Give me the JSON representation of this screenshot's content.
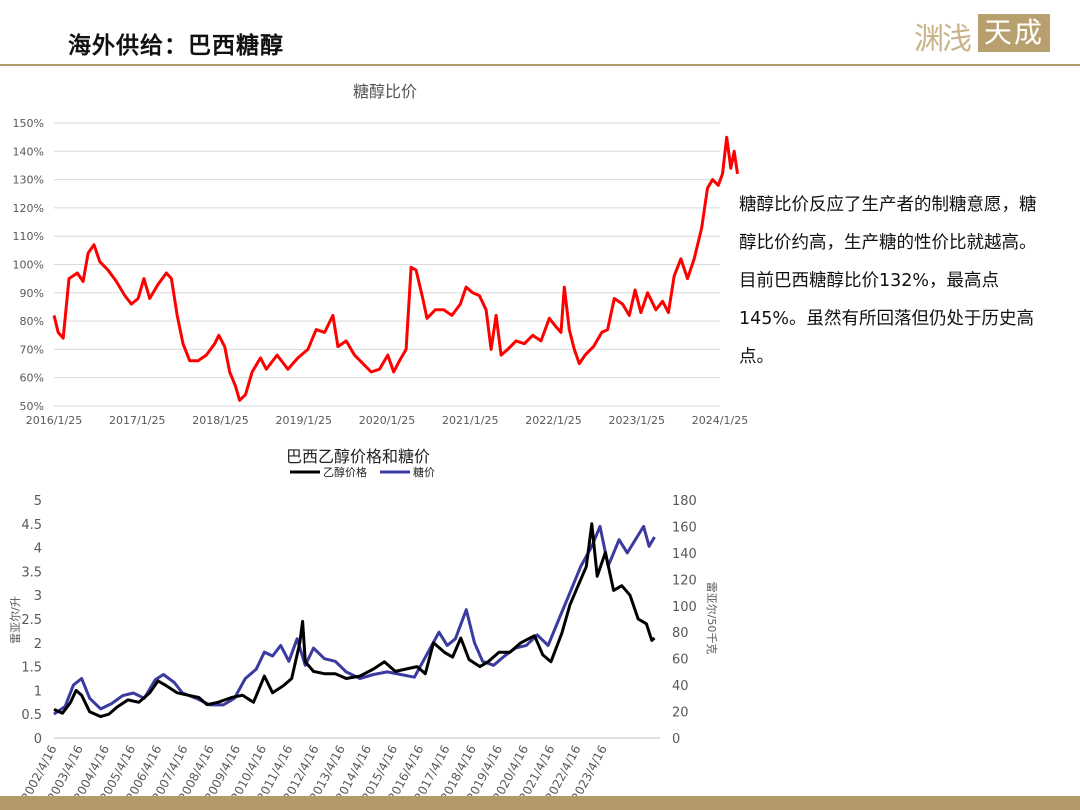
{
  "header": {
    "title": "海外供给：巴西糖醇",
    "logo_script": "渊浅",
    "logo_box": "天成"
  },
  "annotation": "糖醇比价反应了生产者的制糖意愿，糖醇比价约高，生产糖的性价比就越高。目前巴西糖醇比价132%，最高点145%。虽然有所回落但仍处于历史高点。",
  "colors": {
    "ratio_line": "#ff0000",
    "ethanol": "#000000",
    "sugar": "#3a3aa0",
    "accent": "#b49a6a"
  },
  "chart_data": [
    {
      "type": "line",
      "title": "糖醇比价",
      "y_format": "percent",
      "ylim": [
        50,
        150
      ],
      "yticks": [
        50,
        60,
        70,
        80,
        90,
        100,
        110,
        120,
        130,
        140,
        150
      ],
      "xlim": [
        2016.07,
        2024.07
      ],
      "xtick_labels": [
        "2016/1/25",
        "2017/1/25",
        "2018/1/25",
        "2019/1/25",
        "2020/1/25",
        "2021/1/25",
        "2022/1/25",
        "2023/1/25",
        "2024/1/25"
      ],
      "grid": true,
      "series": [
        {
          "color": "#ff0000",
          "points": [
            [
              2016.07,
              82
            ],
            [
              2016.12,
              76
            ],
            [
              2016.18,
              74
            ],
            [
              2016.25,
              95
            ],
            [
              2016.35,
              97
            ],
            [
              2016.42,
              94
            ],
            [
              2016.48,
              104
            ],
            [
              2016.55,
              107
            ],
            [
              2016.62,
              101
            ],
            [
              2016.72,
              98
            ],
            [
              2016.82,
              94
            ],
            [
              2016.92,
              89
            ],
            [
              2017.0,
              86
            ],
            [
              2017.08,
              88
            ],
            [
              2017.15,
              95
            ],
            [
              2017.22,
              88
            ],
            [
              2017.32,
              93
            ],
            [
              2017.42,
              97
            ],
            [
              2017.48,
              95
            ],
            [
              2017.55,
              82
            ],
            [
              2017.62,
              72
            ],
            [
              2017.7,
              66
            ],
            [
              2017.8,
              66
            ],
            [
              2017.9,
              68
            ],
            [
              2018.0,
              72
            ],
            [
              2018.05,
              75
            ],
            [
              2018.12,
              71
            ],
            [
              2018.18,
              62
            ],
            [
              2018.25,
              57
            ],
            [
              2018.3,
              52
            ],
            [
              2018.37,
              54
            ],
            [
              2018.45,
              62
            ],
            [
              2018.55,
              67
            ],
            [
              2018.62,
              63
            ],
            [
              2018.75,
              68
            ],
            [
              2018.88,
              63
            ],
            [
              2019.0,
              67
            ],
            [
              2019.12,
              70
            ],
            [
              2019.22,
              77
            ],
            [
              2019.32,
              76
            ],
            [
              2019.42,
              82
            ],
            [
              2019.48,
              71
            ],
            [
              2019.58,
              73
            ],
            [
              2019.68,
              68
            ],
            [
              2019.78,
              65
            ],
            [
              2019.88,
              62
            ],
            [
              2019.98,
              63
            ],
            [
              2020.08,
              68
            ],
            [
              2020.15,
              62
            ],
            [
              2020.22,
              66
            ],
            [
              2020.3,
              70
            ],
            [
              2020.36,
              99
            ],
            [
              2020.42,
              98
            ],
            [
              2020.5,
              88
            ],
            [
              2020.55,
              81
            ],
            [
              2020.65,
              84
            ],
            [
              2020.75,
              84
            ],
            [
              2020.85,
              82
            ],
            [
              2020.95,
              86
            ],
            [
              2021.02,
              92
            ],
            [
              2021.1,
              90
            ],
            [
              2021.18,
              89
            ],
            [
              2021.26,
              84
            ],
            [
              2021.32,
              70
            ],
            [
              2021.38,
              82
            ],
            [
              2021.44,
              68
            ],
            [
              2021.52,
              70
            ],
            [
              2021.62,
              73
            ],
            [
              2021.72,
              72
            ],
            [
              2021.82,
              75
            ],
            [
              2021.92,
              73
            ],
            [
              2022.02,
              81
            ],
            [
              2022.1,
              78
            ],
            [
              2022.16,
              76
            ],
            [
              2022.2,
              92
            ],
            [
              2022.26,
              77
            ],
            [
              2022.32,
              70
            ],
            [
              2022.38,
              65
            ],
            [
              2022.45,
              68
            ],
            [
              2022.55,
              71
            ],
            [
              2022.65,
              76
            ],
            [
              2022.72,
              77
            ],
            [
              2022.8,
              88
            ],
            [
              2022.9,
              86
            ],
            [
              2022.98,
              82
            ],
            [
              2023.05,
              91
            ],
            [
              2023.12,
              83
            ],
            [
              2023.2,
              90
            ],
            [
              2023.3,
              84
            ],
            [
              2023.38,
              87
            ],
            [
              2023.45,
              83
            ],
            [
              2023.52,
              96
            ],
            [
              2023.6,
              102
            ],
            [
              2023.68,
              95
            ],
            [
              2023.76,
              102
            ],
            [
              2023.85,
              113
            ],
            [
              2023.92,
              127
            ],
            [
              2023.98,
              130
            ],
            [
              2024.05,
              128
            ],
            [
              2024.1,
              132
            ],
            [
              2024.15,
              145
            ],
            [
              2024.2,
              134
            ],
            [
              2024.24,
              140
            ],
            [
              2024.28,
              132
            ]
          ]
        }
      ]
    },
    {
      "type": "line",
      "title": "巴西乙醇价格和糖价",
      "legend_position": "top",
      "ylim": [
        0,
        5
      ],
      "yticks": [
        "0",
        "0.5",
        "1",
        "1.5",
        "2",
        "2.5",
        "3",
        "3.5",
        "4",
        "4.5",
        "5"
      ],
      "ylabel": "雷亚尔/升",
      "y2lim": [
        0,
        180
      ],
      "y2ticks": [
        "0",
        "20",
        "40",
        "60",
        "80",
        "100",
        "120",
        "140",
        "160",
        "180"
      ],
      "y2label": "雷亚尔/50千克",
      "xlim": [
        2002.29,
        2024.5
      ],
      "xtick_labels": [
        "2002/4/16",
        "2003/4/16",
        "2004/4/16",
        "2005/4/16",
        "2006/4/16",
        "2007/4/16",
        "2008/4/16",
        "2009/4/16",
        "2010/4/16",
        "2011/4/16",
        "2012/4/16",
        "2013/4/16",
        "2014/4/16",
        "2015/4/16",
        "2016/4/16",
        "2017/4/16",
        "2018/4/16",
        "2019/4/16",
        "2020/4/16",
        "2021/4/16",
        "2022/4/16",
        "2023/4/16"
      ],
      "grid": false,
      "series": [
        {
          "name": "乙醇价格",
          "axis": "left",
          "color": "#000000",
          "points": [
            [
              2002.29,
              0.6
            ],
            [
              2002.6,
              0.52
            ],
            [
              2002.9,
              0.75
            ],
            [
              2003.1,
              1.0
            ],
            [
              2003.3,
              0.9
            ],
            [
              2003.6,
              0.55
            ],
            [
              2004.0,
              0.45
            ],
            [
              2004.3,
              0.5
            ],
            [
              2004.6,
              0.65
            ],
            [
              2005.0,
              0.8
            ],
            [
              2005.4,
              0.75
            ],
            [
              2005.8,
              0.95
            ],
            [
              2006.1,
              1.2
            ],
            [
              2006.4,
              1.1
            ],
            [
              2006.8,
              0.95
            ],
            [
              2007.2,
              0.9
            ],
            [
              2007.6,
              0.85
            ],
            [
              2007.9,
              0.7
            ],
            [
              2008.3,
              0.75
            ],
            [
              2008.8,
              0.85
            ],
            [
              2009.2,
              0.9
            ],
            [
              2009.6,
              0.75
            ],
            [
              2010.0,
              1.3
            ],
            [
              2010.3,
              0.95
            ],
            [
              2010.7,
              1.1
            ],
            [
              2011.0,
              1.25
            ],
            [
              2011.3,
              2.0
            ],
            [
              2011.4,
              2.45
            ],
            [
              2011.5,
              1.6
            ],
            [
              2011.8,
              1.4
            ],
            [
              2012.2,
              1.35
            ],
            [
              2012.6,
              1.35
            ],
            [
              2013.0,
              1.25
            ],
            [
              2013.5,
              1.3
            ],
            [
              2014.0,
              1.45
            ],
            [
              2014.4,
              1.6
            ],
            [
              2014.8,
              1.4
            ],
            [
              2015.2,
              1.45
            ],
            [
              2015.6,
              1.5
            ],
            [
              2015.9,
              1.35
            ],
            [
              2016.2,
              2.0
            ],
            [
              2016.6,
              1.8
            ],
            [
              2016.9,
              1.7
            ],
            [
              2017.2,
              2.1
            ],
            [
              2017.5,
              1.65
            ],
            [
              2017.9,
              1.5
            ],
            [
              2018.2,
              1.6
            ],
            [
              2018.6,
              1.8
            ],
            [
              2019.0,
              1.8
            ],
            [
              2019.4,
              2.0
            ],
            [
              2019.9,
              2.15
            ],
            [
              2020.2,
              1.75
            ],
            [
              2020.5,
              1.6
            ],
            [
              2020.9,
              2.2
            ],
            [
              2021.2,
              2.8
            ],
            [
              2021.5,
              3.2
            ],
            [
              2021.8,
              3.6
            ],
            [
              2022.0,
              4.5
            ],
            [
              2022.2,
              3.4
            ],
            [
              2022.5,
              3.9
            ],
            [
              2022.8,
              3.1
            ],
            [
              2023.1,
              3.2
            ],
            [
              2023.4,
              3.0
            ],
            [
              2023.7,
              2.5
            ],
            [
              2024.0,
              2.4
            ],
            [
              2024.2,
              2.05
            ],
            [
              2024.3,
              2.1
            ]
          ]
        },
        {
          "name": "糖价",
          "axis": "right",
          "color": "#3a3aa0",
          "points": [
            [
              2002.29,
              18
            ],
            [
              2002.7,
              24
            ],
            [
              2003.0,
              40
            ],
            [
              2003.3,
              45
            ],
            [
              2003.6,
              30
            ],
            [
              2004.0,
              22
            ],
            [
              2004.4,
              26
            ],
            [
              2004.8,
              32
            ],
            [
              2005.2,
              34
            ],
            [
              2005.6,
              30
            ],
            [
              2006.0,
              44
            ],
            [
              2006.3,
              48
            ],
            [
              2006.7,
              42
            ],
            [
              2007.0,
              34
            ],
            [
              2007.5,
              30
            ],
            [
              2008.0,
              25
            ],
            [
              2008.5,
              25
            ],
            [
              2008.9,
              30
            ],
            [
              2009.3,
              45
            ],
            [
              2009.7,
              52
            ],
            [
              2010.0,
              65
            ],
            [
              2010.3,
              62
            ],
            [
              2010.6,
              70
            ],
            [
              2010.9,
              58
            ],
            [
              2011.2,
              75
            ],
            [
              2011.5,
              55
            ],
            [
              2011.8,
              68
            ],
            [
              2012.2,
              60
            ],
            [
              2012.6,
              58
            ],
            [
              2013.0,
              50
            ],
            [
              2013.5,
              45
            ],
            [
              2014.0,
              48
            ],
            [
              2014.5,
              50
            ],
            [
              2015.0,
              48
            ],
            [
              2015.5,
              46
            ],
            [
              2016.0,
              65
            ],
            [
              2016.4,
              80
            ],
            [
              2016.7,
              70
            ],
            [
              2017.0,
              75
            ],
            [
              2017.4,
              97
            ],
            [
              2017.7,
              72
            ],
            [
              2018.0,
              58
            ],
            [
              2018.4,
              55
            ],
            [
              2018.8,
              62
            ],
            [
              2019.2,
              68
            ],
            [
              2019.6,
              70
            ],
            [
              2020.0,
              78
            ],
            [
              2020.4,
              70
            ],
            [
              2020.8,
              90
            ],
            [
              2021.2,
              110
            ],
            [
              2021.6,
              130
            ],
            [
              2022.0,
              145
            ],
            [
              2022.3,
              160
            ],
            [
              2022.6,
              130
            ],
            [
              2023.0,
              150
            ],
            [
              2023.3,
              140
            ],
            [
              2023.6,
              150
            ],
            [
              2023.9,
              160
            ],
            [
              2024.1,
              145
            ],
            [
              2024.3,
              152
            ]
          ]
        }
      ]
    }
  ]
}
